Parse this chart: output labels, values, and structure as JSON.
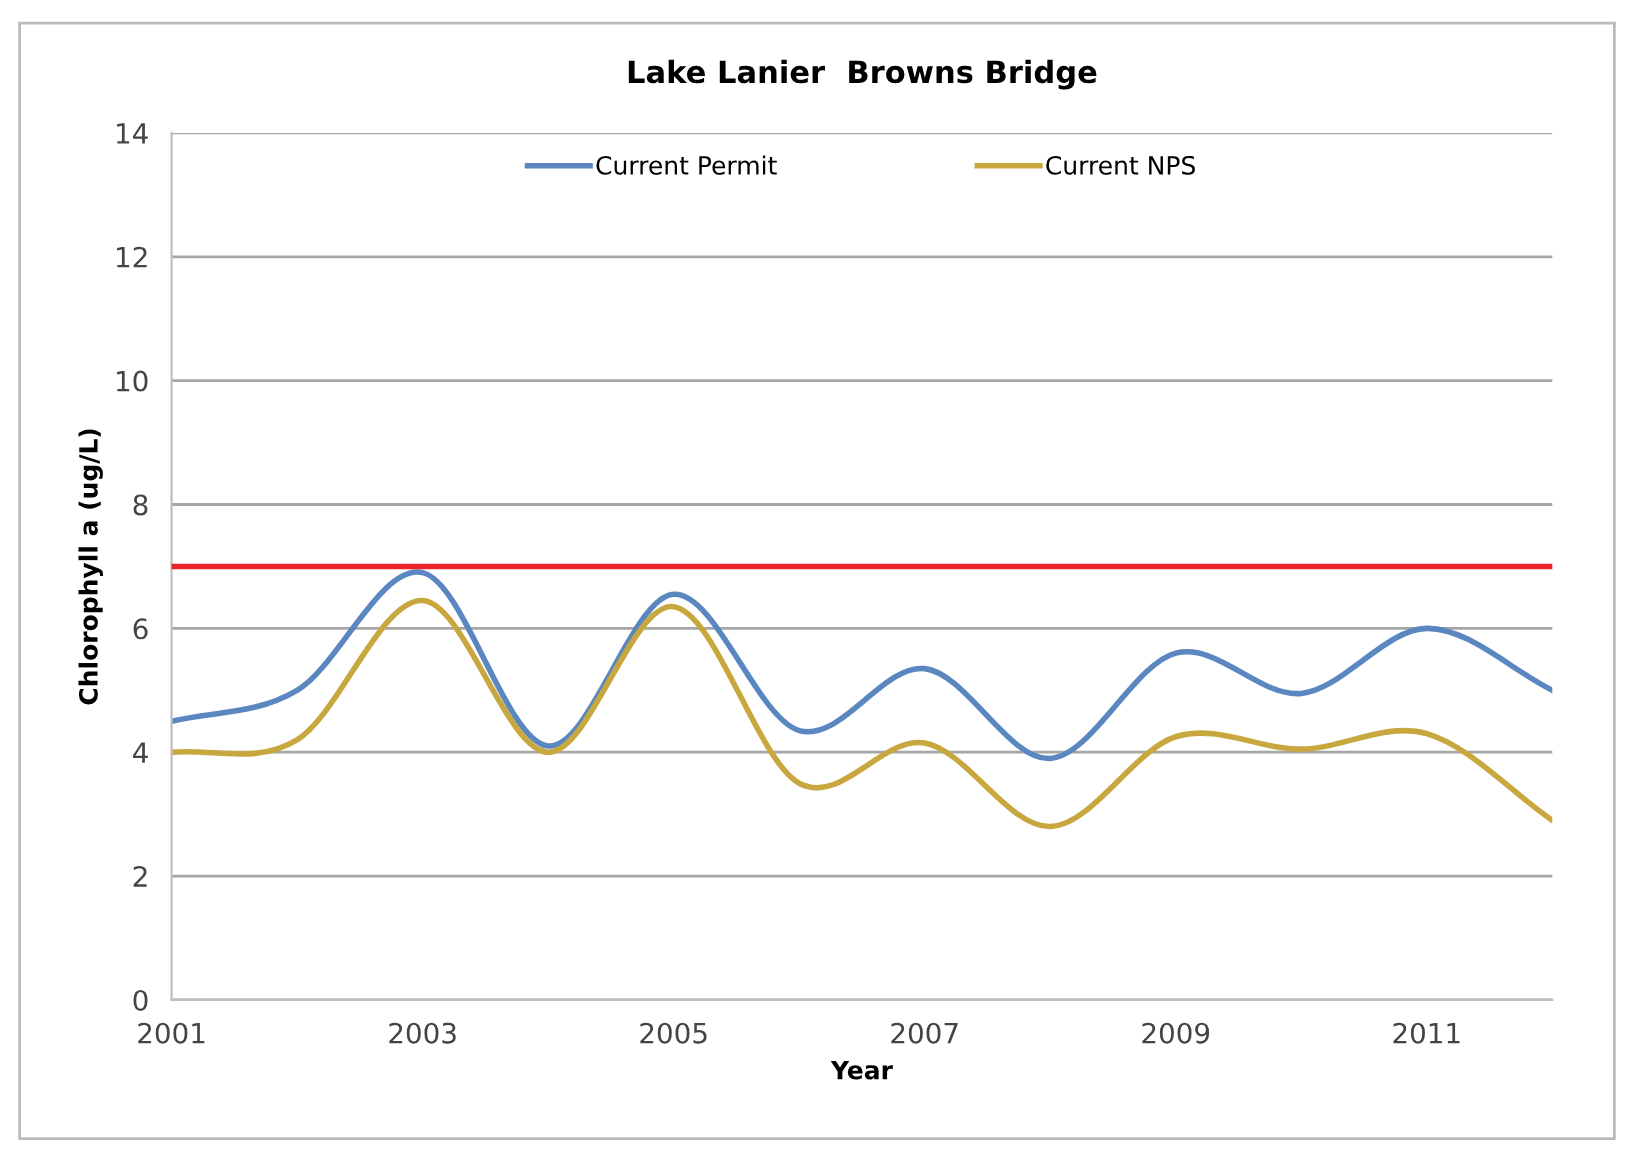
{
  "chart_data": {
    "type": "line",
    "title": "Lake Lanier  Browns Bridge",
    "xlabel": "Year",
    "ylabel": "Chlorophyll a (ug/L)",
    "x": [
      2001,
      2002,
      2003,
      2004,
      2005,
      2006,
      2007,
      2008,
      2009,
      2010,
      2011,
      2012
    ],
    "series": [
      {
        "name": "Current Permit",
        "color": "#5b87c0",
        "values": [
          4.5,
          5.0,
          6.9,
          4.1,
          6.55,
          4.35,
          5.35,
          3.9,
          5.6,
          4.95,
          6.0,
          5.0
        ]
      },
      {
        "name": "Current NPS",
        "color": "#c8a83e",
        "values": [
          4.0,
          4.2,
          6.45,
          4.0,
          6.35,
          3.5,
          4.15,
          2.8,
          4.25,
          4.05,
          4.3,
          2.9
        ]
      }
    ],
    "xlim": [
      2001,
      2012
    ],
    "xticks": [
      2001,
      2003,
      2005,
      2007,
      2009,
      2011
    ],
    "ylim": [
      0,
      14
    ],
    "yticks": [
      0,
      2,
      4,
      6,
      8,
      10,
      12,
      14
    ],
    "ref_lines": [
      {
        "axis": "y",
        "value": 7,
        "color": "#e8262a"
      }
    ],
    "grid": "y",
    "legend": "top",
    "marker": "none",
    "line_style": "solid"
  }
}
